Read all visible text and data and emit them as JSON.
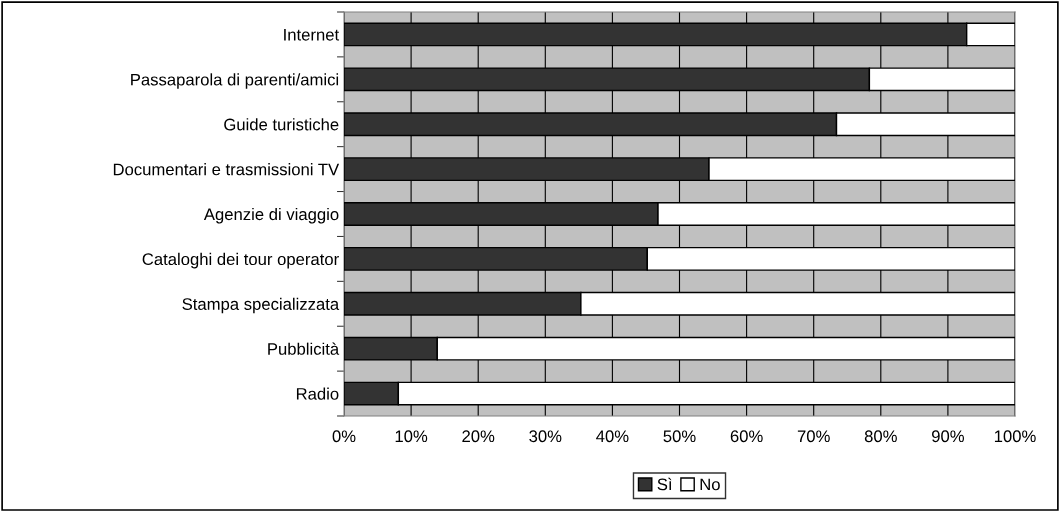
{
  "chart_data": {
    "type": "bar",
    "orientation": "horizontal",
    "stacked": true,
    "categories": [
      "Internet",
      "Passaparola di parenti/amici",
      "Guide turistiche",
      "Documentari e trasmissioni TV",
      "Agenzie di viaggio",
      "Cataloghi dei tour operator",
      "Stampa specializzata",
      "Pubblicità",
      "Radio"
    ],
    "series": [
      {
        "name": "Sì",
        "color": "#333333",
        "values": [
          92.8,
          78.3,
          73.4,
          54.4,
          46.8,
          45.2,
          35.3,
          13.9,
          8.1
        ]
      },
      {
        "name": "No",
        "color": "#ffffff",
        "values": [
          7.2,
          21.7,
          26.6,
          45.6,
          53.2,
          54.8,
          64.7,
          86.1,
          91.9
        ]
      }
    ],
    "xlim": [
      0,
      100
    ],
    "xticks": [
      {
        "value": 0,
        "label": "0%"
      },
      {
        "value": 10,
        "label": "10%"
      },
      {
        "value": 20,
        "label": "20%"
      },
      {
        "value": 30,
        "label": "30%"
      },
      {
        "value": 40,
        "label": "40%"
      },
      {
        "value": 50,
        "label": "50%"
      },
      {
        "value": 60,
        "label": "60%"
      },
      {
        "value": 70,
        "label": "70%"
      },
      {
        "value": 80,
        "label": "80%"
      },
      {
        "value": 90,
        "label": "90%"
      },
      {
        "value": 100,
        "label": "100%"
      }
    ],
    "grid": "x",
    "legend": "bottom"
  }
}
